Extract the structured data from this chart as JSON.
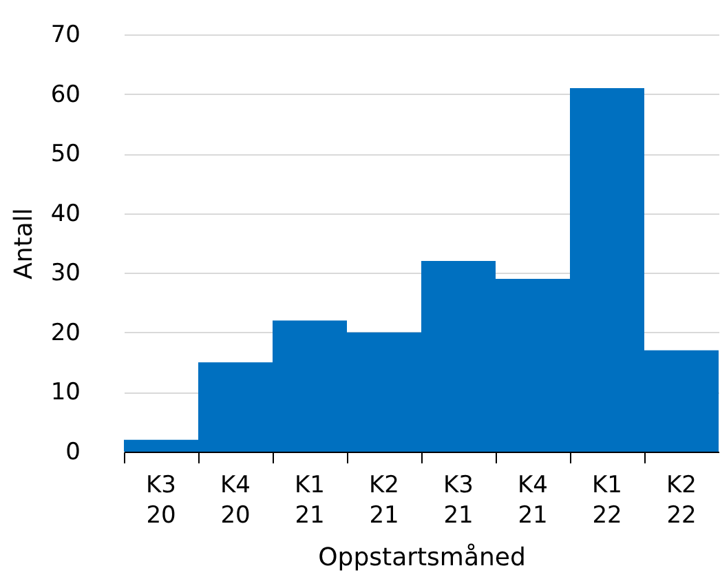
{
  "chart_data": {
    "type": "bar",
    "xlabel": "Oppstartsmåned",
    "ylabel": "Antall",
    "categories": [
      "K3 20",
      "K4 20",
      "K1 21",
      "K2 21",
      "K3 21",
      "K4 21",
      "K1 22",
      "K2 22"
    ],
    "values": [
      2,
      15,
      22,
      20,
      32,
      29,
      61,
      17
    ],
    "color": "#0070c0",
    "ylim": [
      0,
      70
    ],
    "yticks": [
      0,
      10,
      20,
      30,
      40,
      50,
      60,
      70
    ],
    "grid": "y"
  }
}
